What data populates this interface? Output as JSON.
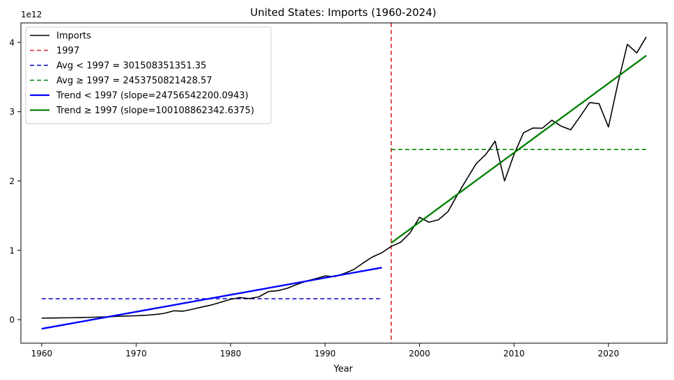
{
  "chart_data": {
    "type": "line",
    "title": "United States: Imports (1960-2024)",
    "xlabel": "Year",
    "ylabel": "",
    "y_offset_label": "1e12",
    "xlim": [
      1957.8,
      2026.2
    ],
    "ylim": [
      -0.34,
      4.28
    ],
    "y_scale_note": "values in units of 1e12",
    "x_ticks": [
      1960,
      1970,
      1980,
      1990,
      2000,
      2010,
      2020
    ],
    "y_ticks": [
      0,
      1,
      2,
      3,
      4
    ],
    "split_year": 1997,
    "legend_position": "upper-left",
    "series": [
      {
        "name": "Imports",
        "color": "#000000",
        "x": [
          1960,
          1961,
          1962,
          1963,
          1964,
          1965,
          1966,
          1967,
          1968,
          1969,
          1970,
          1971,
          1972,
          1973,
          1974,
          1975,
          1976,
          1977,
          1978,
          1979,
          1980,
          1981,
          1982,
          1983,
          1984,
          1985,
          1986,
          1987,
          1988,
          1989,
          1990,
          1991,
          1992,
          1993,
          1994,
          1995,
          1996,
          1997,
          1998,
          1999,
          2000,
          2001,
          2002,
          2003,
          2004,
          2005,
          2006,
          2007,
          2008,
          2009,
          2010,
          2011,
          2012,
          2013,
          2014,
          2015,
          2016,
          2017,
          2018,
          2019,
          2020,
          2021,
          2022,
          2023,
          2024
        ],
        "values": [
          0.022,
          0.023,
          0.025,
          0.027,
          0.029,
          0.032,
          0.037,
          0.04,
          0.047,
          0.051,
          0.056,
          0.062,
          0.074,
          0.091,
          0.127,
          0.122,
          0.151,
          0.183,
          0.212,
          0.253,
          0.293,
          0.318,
          0.303,
          0.329,
          0.405,
          0.417,
          0.452,
          0.507,
          0.555,
          0.591,
          0.63,
          0.62,
          0.665,
          0.72,
          0.814,
          0.903,
          0.964,
          1.056,
          1.116,
          1.252,
          1.476,
          1.405,
          1.44,
          1.556,
          1.798,
          2.028,
          2.25,
          2.38,
          2.574,
          2.001,
          2.382,
          2.694,
          2.764,
          2.761,
          2.876,
          2.791,
          2.738,
          2.93,
          3.131,
          3.116,
          2.779,
          3.409,
          3.971,
          3.847,
          4.078
        ]
      }
    ],
    "reference_lines": [
      {
        "name": "1997",
        "orientation": "vertical",
        "x": 1997,
        "color": "#d62728",
        "style": "dashed"
      },
      {
        "name": "Avg < 1997 = 301508351351.35",
        "orientation": "horizontal",
        "y": 0.301508351351,
        "x_range": [
          1960,
          1996
        ],
        "color": "#0000cc",
        "style": "dashed"
      },
      {
        "name": "Avg ≥ 1997 = 2453750821428.57",
        "orientation": "horizontal",
        "y": 2.453750821429,
        "x_range": [
          1997,
          2024
        ],
        "color": "#008000",
        "style": "dashed"
      },
      {
        "name": "Trend < 1997 (slope=24756542200.0943)",
        "orientation": "trend",
        "x_range": [
          1960,
          1996
        ],
        "y_range": [
          -0.132,
          0.75
        ],
        "color": "#0000ff",
        "style": "solid"
      },
      {
        "name": "Trend ≥ 1997 (slope=100108862342.6375)",
        "orientation": "trend",
        "x_range": [
          1997,
          2024
        ],
        "y_range": [
          1.106,
          3.809
        ],
        "color": "#008000",
        "style": "solid"
      }
    ],
    "legend": [
      {
        "label": "Imports",
        "color": "#000000",
        "style": "solid",
        "width": "thin"
      },
      {
        "label": "1997",
        "color": "#d62728",
        "style": "dashed",
        "width": "thin"
      },
      {
        "label": "Avg < 1997 = 301508351351.35",
        "color": "#0000cc",
        "style": "dashed",
        "width": "thin"
      },
      {
        "label": "Avg ≥ 1997 = 2453750821428.57",
        "color": "#008000",
        "style": "dashed",
        "width": "thin"
      },
      {
        "label": "Trend < 1997 (slope=24756542200.0943)",
        "color": "#0000ff",
        "style": "solid",
        "width": "thick"
      },
      {
        "label": "Trend ≥ 1997 (slope=100108862342.6375)",
        "color": "#008000",
        "style": "solid",
        "width": "thick"
      }
    ]
  }
}
